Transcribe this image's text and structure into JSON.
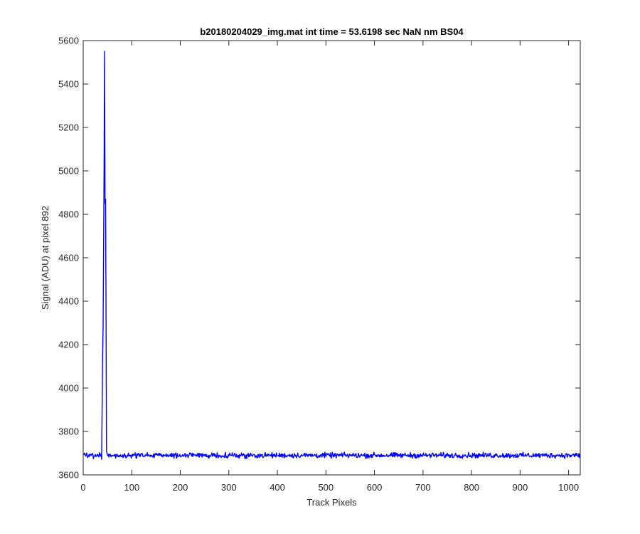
{
  "chart_data": {
    "type": "line",
    "title": "b20180204029_img.mat int time = 53.6198 sec  NaN nm BS04",
    "xlabel": "Track Pixels",
    "ylabel": "Signal (ADU) at pixel 892",
    "xlim": [
      0,
      1024
    ],
    "ylim": [
      3600,
      5600
    ],
    "xticks": [
      0,
      100,
      200,
      300,
      400,
      500,
      600,
      700,
      800,
      900,
      1000
    ],
    "yticks": [
      3600,
      3800,
      4000,
      4200,
      4400,
      4600,
      4800,
      5000,
      5200,
      5400,
      5600
    ],
    "grid": false,
    "legend": "none",
    "colors": {
      "line": "#0000ff",
      "axes": "#262626",
      "background": "#ffffff"
    },
    "series": [
      {
        "baseline": 3690,
        "noise_amplitude": 12,
        "x": [
          0,
          37,
          38,
          40,
          41,
          42,
          43,
          44,
          45,
          46,
          47,
          48,
          49,
          50,
          1024
        ],
        "values": [
          3690,
          3690,
          3672,
          4150,
          4280,
          4650,
          5000,
          5550,
          4850,
          4870,
          4400,
          3710,
          3700,
          3690,
          3690
        ]
      }
    ]
  }
}
